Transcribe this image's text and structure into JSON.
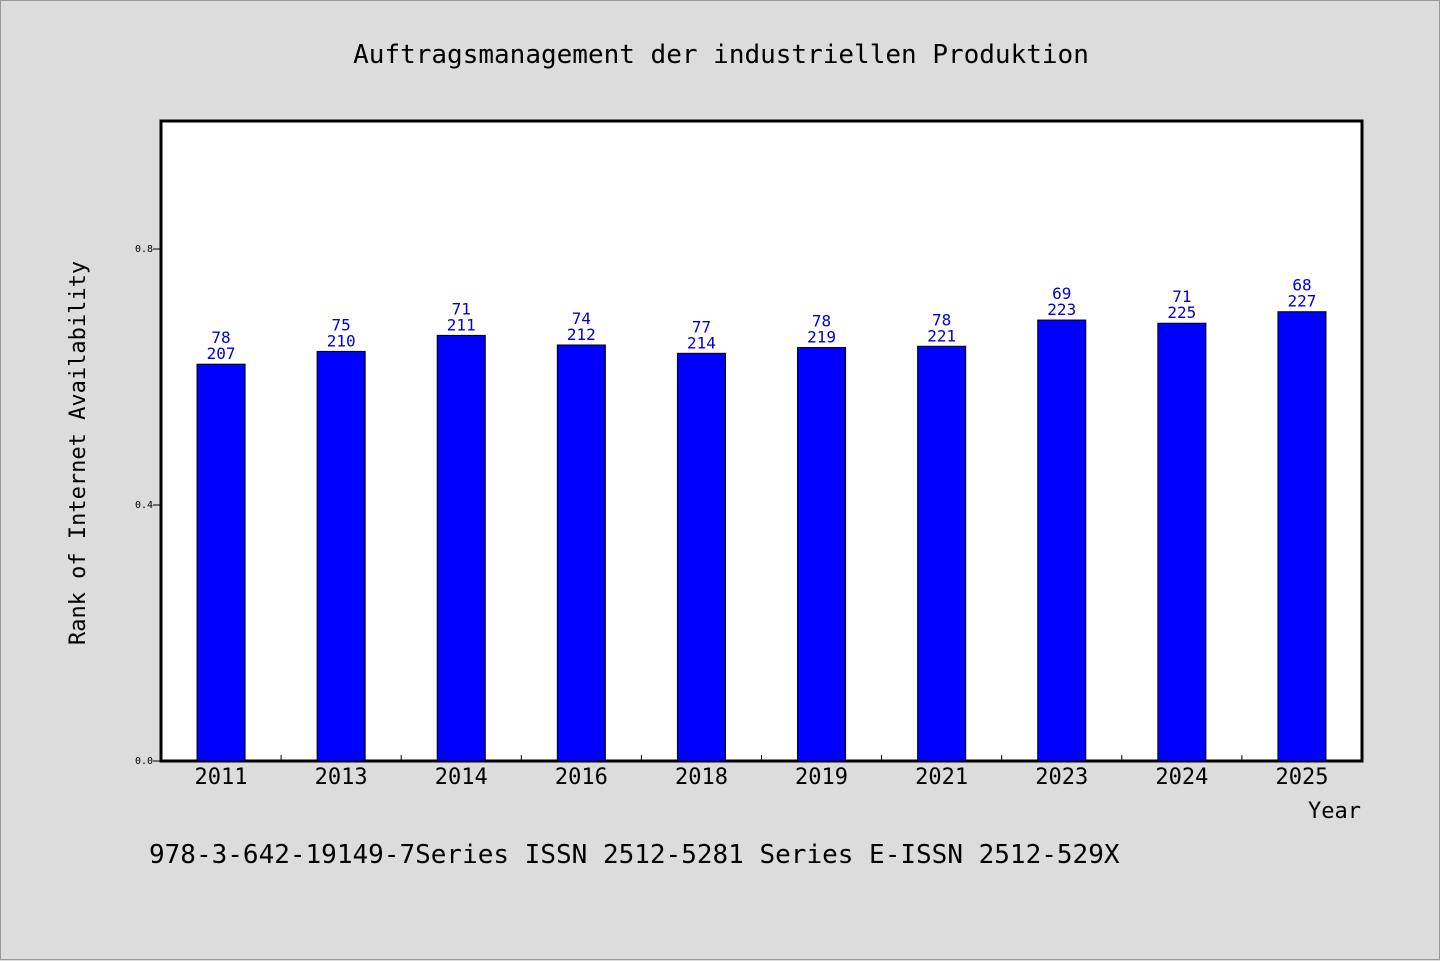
{
  "chart_data": {
    "type": "bar",
    "title": "Auftragsmanagement der industriellen Produktion",
    "xlabel": "Year",
    "ylabel": "Rank of Internet Availability",
    "categories": [
      "2011",
      "2013",
      "2014",
      "2016",
      "2018",
      "2019",
      "2021",
      "2023",
      "2024",
      "2025"
    ],
    "series": [
      {
        "values": [
          0.62,
          0.64,
          0.665,
          0.65,
          0.637,
          0.646,
          0.648,
          0.689,
          0.684,
          0.702
        ],
        "color": "#0000ff"
      }
    ],
    "data_labels_top": [
      "78",
      "75",
      "71",
      "74",
      "77",
      "78",
      "78",
      "69",
      "71",
      "68"
    ],
    "data_labels_bottom": [
      "207",
      "210",
      "211",
      "212",
      "214",
      "219",
      "221",
      "223",
      "225",
      "227"
    ],
    "ylim": [
      0,
      1.0
    ],
    "yticks": [
      "0.0",
      "0.4",
      "0.8"
    ],
    "ytick_values": [
      0.0,
      0.4,
      0.8
    ],
    "grid": false,
    "bar_color": "#0000ff",
    "label_color": "#0000cc"
  },
  "footer": "978-3-642-19149-7Series ISSN 2512-5281 Series E-ISSN 2512-529X"
}
